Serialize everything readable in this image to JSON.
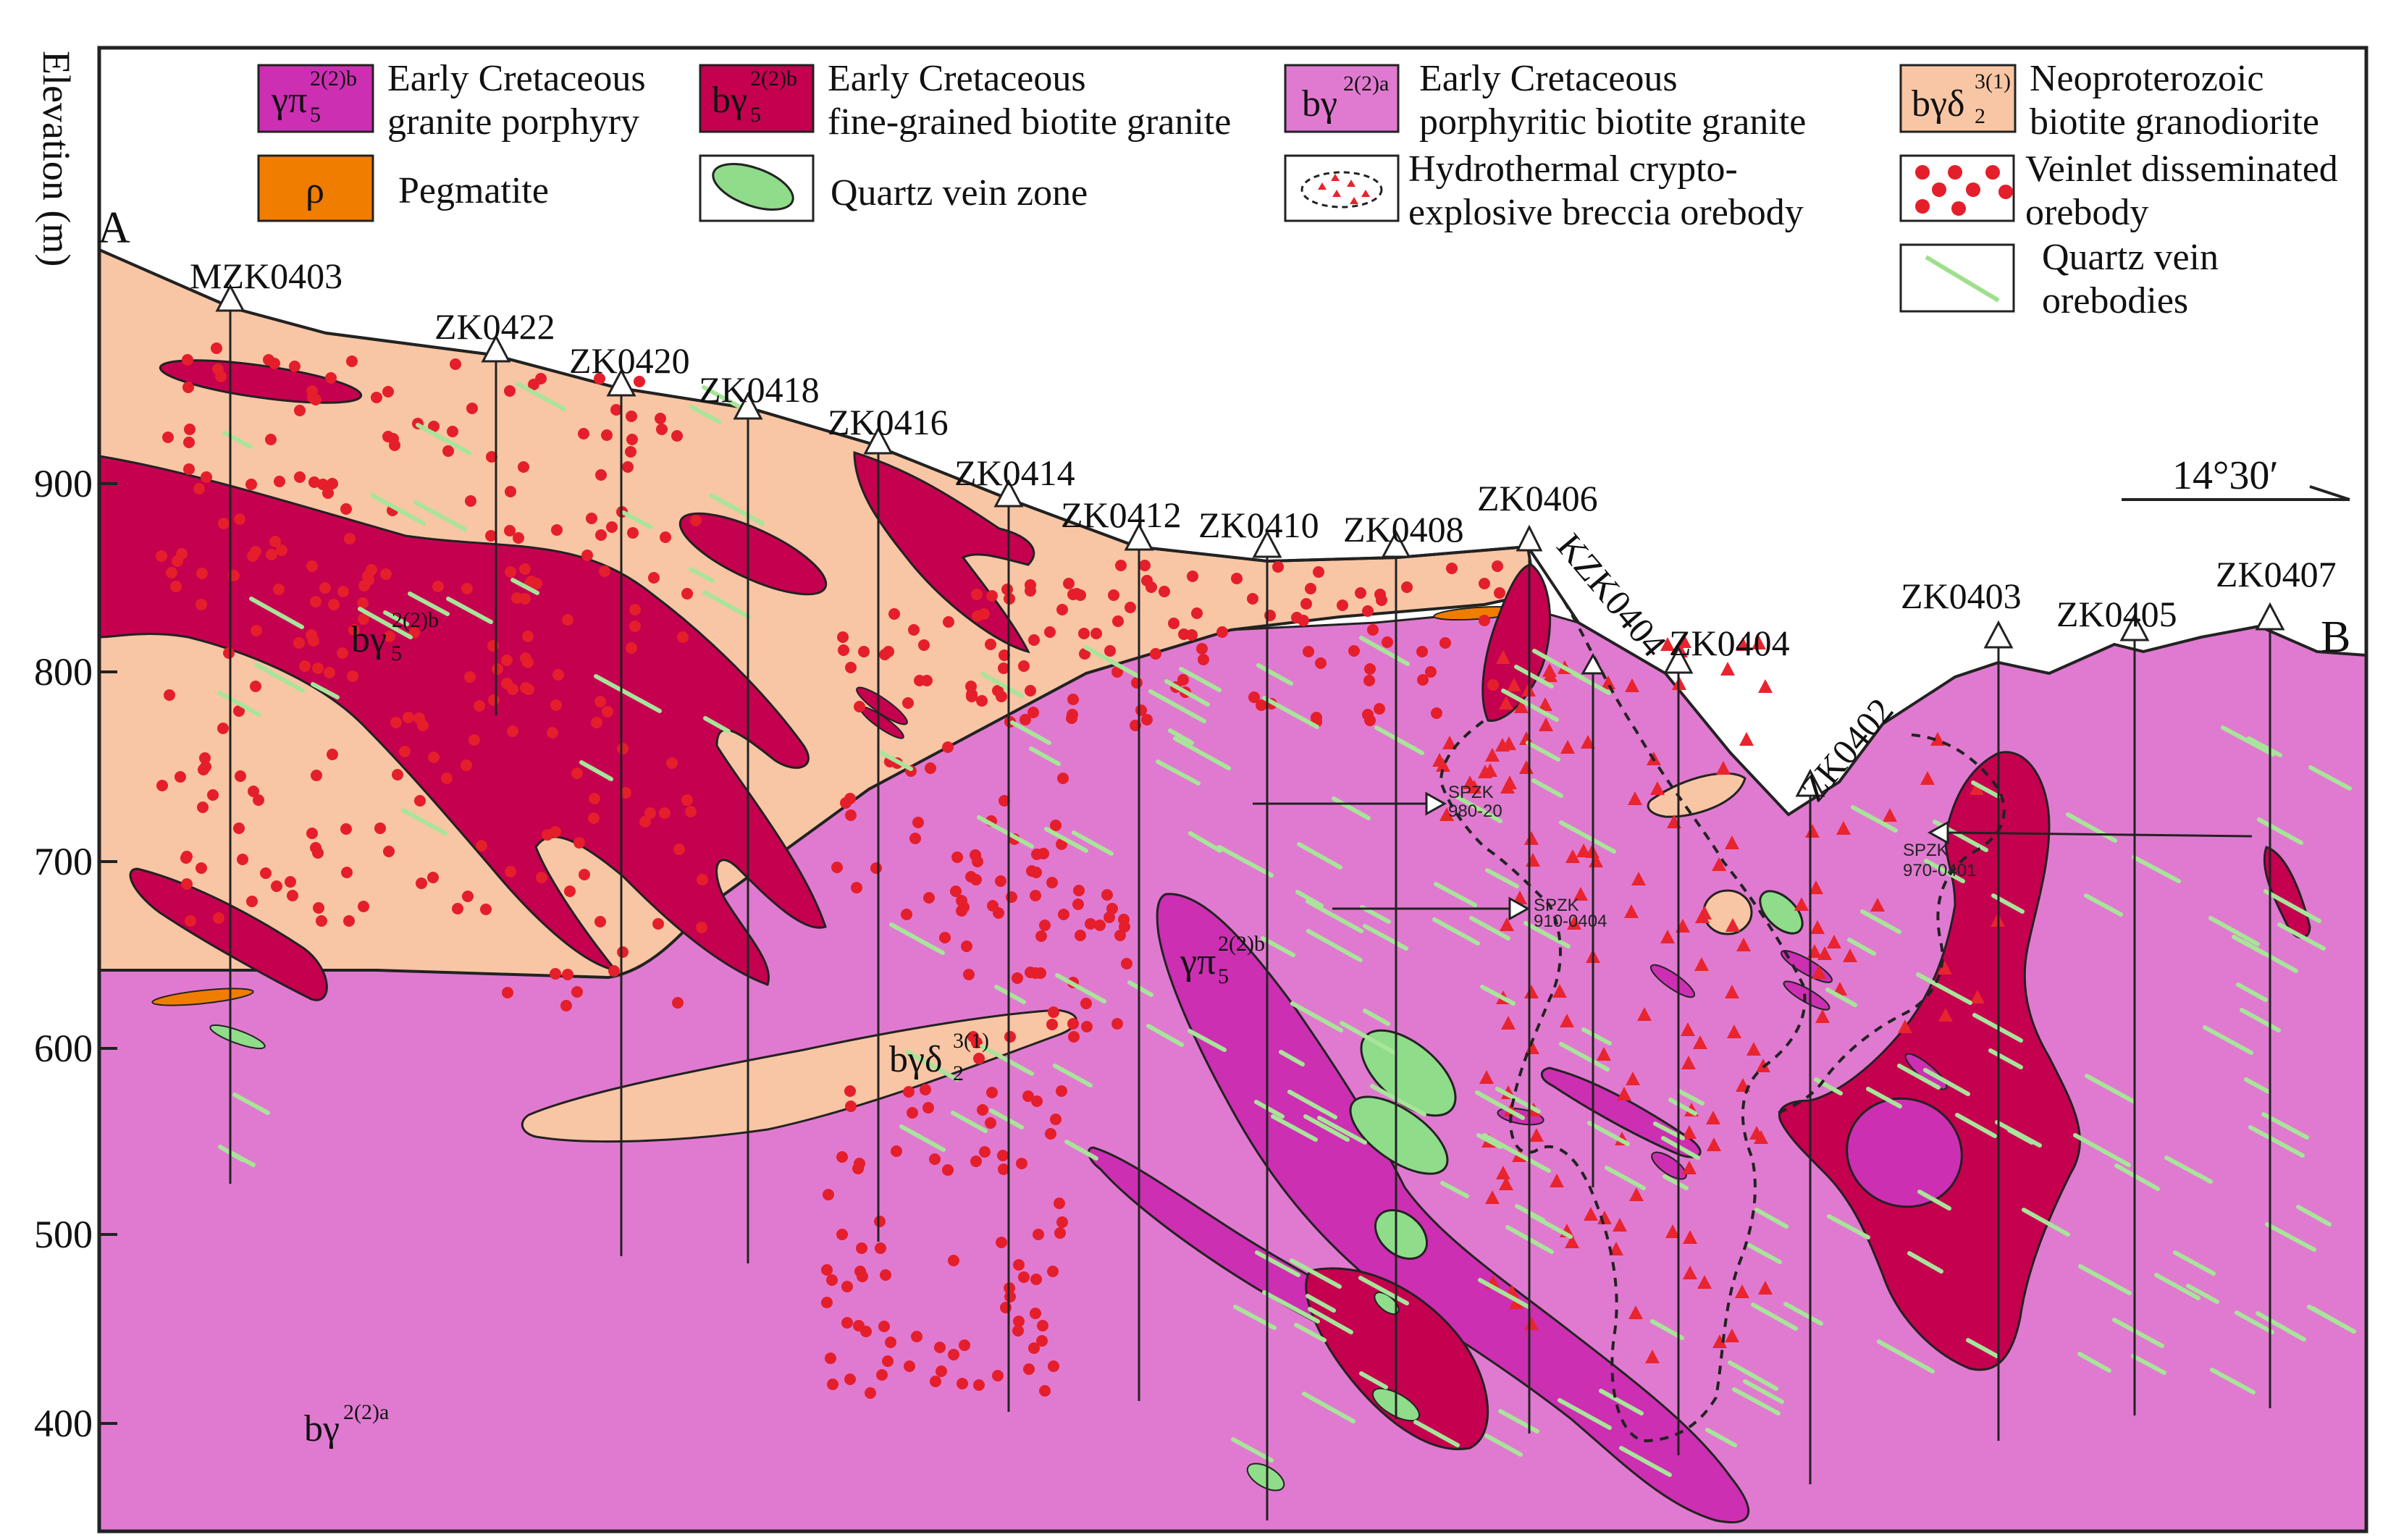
{
  "axis": {
    "ylabel": "Elevation (m)",
    "ticks": [
      "900",
      "800",
      "700",
      "600",
      "500",
      "400"
    ]
  },
  "section": {
    "start": "A",
    "end": "B",
    "azimuth": "14°30′"
  },
  "legend": [
    {
      "id": "gp",
      "symbol": "γπ",
      "sub": "5",
      "sup": "2(2)b",
      "line1": "Early Cretaceous",
      "line2": "granite porphyry",
      "color": "#cc2fb2"
    },
    {
      "id": "fbg",
      "symbol": "bγ",
      "sub": "5",
      "sup": "2(2)b",
      "line1": "Early Cretaceous",
      "line2": "fine-grained biotite granite",
      "color": "#c4004f"
    },
    {
      "id": "pbg",
      "symbol": "bγ",
      "sub": "",
      "sup": "2(2)a",
      "line1": "Early Cretaceous",
      "line2": "porphyritic biotite granite",
      "color": "#e07ad0"
    },
    {
      "id": "bgd",
      "symbol": "bγδ",
      "sub": "2",
      "sup": "3(1)",
      "line1": "Neoproterozoic",
      "line2": "biotite granodiorite",
      "color": "#f8c6a4"
    },
    {
      "id": "peg",
      "symbol": "ρ",
      "line1": "Pegmatite",
      "color": "#f07d00"
    },
    {
      "id": "qvz",
      "line1": "Quartz vein zone",
      "color": "#8fdc8a"
    },
    {
      "id": "hbx",
      "line1": "Hydrothermal crypto-",
      "line2": "explosive breccia orebody",
      "color": "#e8242f"
    },
    {
      "id": "vdo",
      "line1": "Veinlet disseminated",
      "line2": "orebody",
      "color": "#e51e2b"
    },
    {
      "id": "qvo",
      "line1": "Quartz vein",
      "line2": "orebodies",
      "color": "#9ee08c"
    }
  ],
  "drillholes": [
    "MZK0403",
    "ZK0422",
    "ZK0420",
    "ZK0418",
    "ZK0416",
    "ZK0414",
    "ZK0412",
    "ZK0410",
    "ZK0408",
    "ZK0406",
    "KZK0404",
    "ZK0404",
    "ZK0402",
    "ZK0403",
    "ZK0405",
    "ZK0407"
  ],
  "map_labels": {
    "fbg_label": {
      "symbol": "bγ",
      "sub": "5",
      "sup": "2(2)b"
    },
    "gp_label": {
      "symbol": "γπ",
      "sub": "5",
      "sup": "2(2)b"
    },
    "bgd_label": {
      "symbol": "bγδ",
      "sub": "2",
      "sup": "3(1)"
    },
    "pbg_label": {
      "symbol": "bγ",
      "sup": "2(2)a"
    }
  },
  "sample_labels": [
    "SPZK",
    "980-20",
    "SPZK",
    "910-0404",
    "SPZK",
    "970-0401"
  ]
}
